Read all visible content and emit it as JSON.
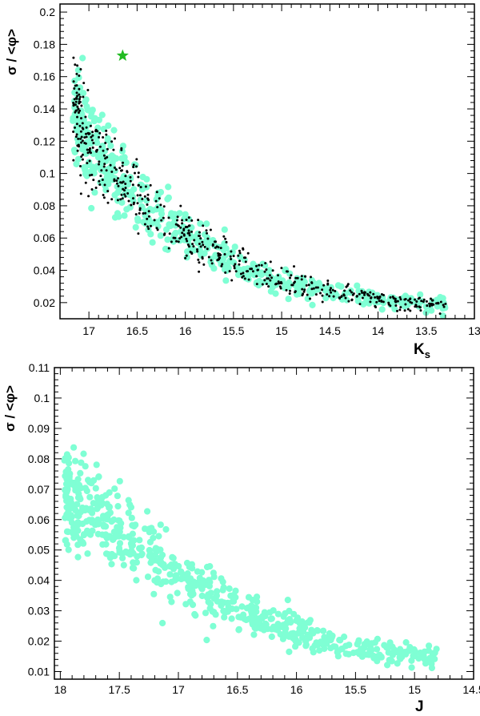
{
  "chart_data": [
    {
      "type": "scatter",
      "ylabel": "σ / <φ>",
      "xlabel_main": "K",
      "xlabel_sub": "s",
      "xlim": [
        17.3,
        13.0
      ],
      "ylim": [
        0.01,
        0.205
      ],
      "x_reversed": true,
      "xticks": [
        17,
        16.5,
        16,
        15.5,
        15,
        14.5,
        14,
        13.5,
        13
      ],
      "yticks": [
        0.02,
        0.04,
        0.06,
        0.08,
        0.1,
        0.12,
        0.14,
        0.16,
        0.18,
        0.2
      ],
      "grid": false,
      "colors": {
        "field_stars": "#7fffd4",
        "black_stars": "#000000",
        "highlight": "#22bb22"
      },
      "highlight_star": {
        "x": 16.65,
        "y": 0.173
      },
      "trend_anchors": {
        "x": [
          17.1,
          17.0,
          16.8,
          16.5,
          16.2,
          16.0,
          15.8,
          15.5,
          15.2,
          15.0,
          14.5,
          14.0,
          13.5,
          13.3
        ],
        "y": [
          0.135,
          0.118,
          0.104,
          0.086,
          0.071,
          0.063,
          0.055,
          0.045,
          0.038,
          0.033,
          0.027,
          0.022,
          0.019,
          0.018
        ]
      },
      "series": [
        {
          "marker": "large-circle",
          "color": "#7fffd4",
          "count": 520
        },
        {
          "marker": "small-dot",
          "color": "#000000",
          "count": 560
        }
      ]
    },
    {
      "type": "scatter",
      "ylabel": "σ / <φ>",
      "xlabel_main": "J",
      "xlim": [
        18.05,
        14.5
      ],
      "ylim": [
        0.0075,
        0.11
      ],
      "x_reversed": true,
      "xticks": [
        18,
        17.5,
        17,
        16.5,
        16,
        15.5,
        15,
        14.5
      ],
      "yticks": [
        0.01,
        0.02,
        0.03,
        0.04,
        0.05,
        0.06,
        0.07,
        0.08,
        0.09,
        0.1,
        0.11
      ],
      "grid": false,
      "colors": {
        "field_stars": "#7fffd4"
      },
      "trend_anchors": {
        "x": [
          17.9,
          17.7,
          17.5,
          17.3,
          17.0,
          16.7,
          16.5,
          16.2,
          16.0,
          15.7,
          15.5,
          15.2,
          15.0,
          14.8
        ],
        "y": [
          0.067,
          0.062,
          0.056,
          0.049,
          0.042,
          0.035,
          0.03,
          0.026,
          0.023,
          0.02,
          0.018,
          0.016,
          0.015,
          0.014
        ]
      },
      "series": [
        {
          "marker": "large-circle",
          "color": "#7fffd4",
          "count": 620
        }
      ]
    }
  ]
}
